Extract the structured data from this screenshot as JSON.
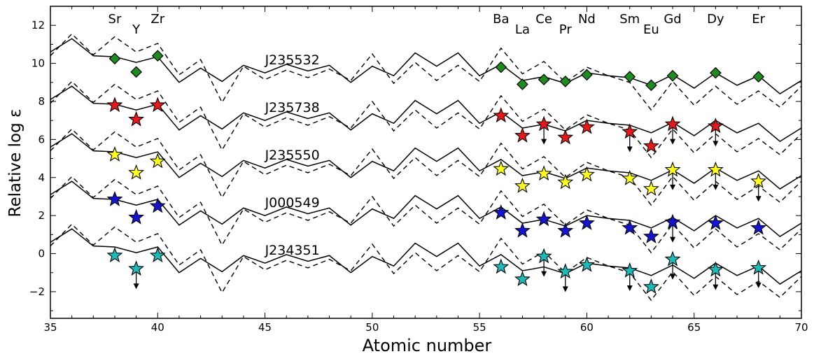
{
  "chart_data": {
    "type": "line",
    "xlabel": "Atomic number",
    "ylabel": "Relative log ε",
    "xlim": [
      35,
      70
    ],
    "ylim": [
      -3.4,
      13.0
    ],
    "xticks": [
      35,
      40,
      45,
      50,
      55,
      60,
      65,
      70
    ],
    "yticks": [
      -2,
      0,
      2,
      4,
      6,
      8,
      10,
      12
    ],
    "grid": false,
    "element_labels": [
      {
        "z": 38,
        "label": "Sr",
        "row": "upper"
      },
      {
        "z": 39,
        "label": "Y",
        "row": "lower"
      },
      {
        "z": 40,
        "label": "Zr",
        "row": "upper"
      },
      {
        "z": 56,
        "label": "Ba",
        "row": "upper"
      },
      {
        "z": 57,
        "label": "La",
        "row": "lower"
      },
      {
        "z": 58,
        "label": "Ce",
        "row": "upper"
      },
      {
        "z": 59,
        "label": "Pr",
        "row": "lower"
      },
      {
        "z": 60,
        "label": "Nd",
        "row": "upper"
      },
      {
        "z": 62,
        "label": "Sm",
        "row": "upper"
      },
      {
        "z": 63,
        "label": "Eu",
        "row": "lower"
      },
      {
        "z": 64,
        "label": "Gd",
        "row": "upper"
      },
      {
        "z": 66,
        "label": "Dy",
        "row": "upper"
      },
      {
        "z": 68,
        "label": "Er",
        "row": "upper"
      }
    ],
    "pattern_x": [
      35,
      36,
      37,
      38,
      39,
      40,
      41,
      42,
      43,
      44,
      45,
      46,
      47,
      48,
      49,
      50,
      51,
      52,
      53,
      54,
      55,
      56,
      57,
      58,
      59,
      60,
      61,
      62,
      63,
      64,
      65,
      66,
      67,
      68,
      69,
      70
    ],
    "solid_pattern": [
      10.6,
      11.3,
      10.4,
      10.35,
      10.05,
      10.35,
      9.0,
      9.75,
      9.05,
      9.9,
      9.5,
      9.95,
      9.6,
      9.9,
      9.0,
      9.85,
      9.35,
      10.55,
      9.85,
      10.55,
      9.35,
      9.95,
      9.1,
      9.3,
      8.95,
      9.5,
      9.35,
      9.25,
      8.85,
      9.4,
      8.7,
      9.5,
      8.85,
      9.35,
      8.4,
      9.1
    ],
    "dashed_pattern": [
      10.4,
      11.55,
      10.45,
      11.4,
      10.6,
      11.05,
      9.4,
      10.2,
      7.95,
      9.85,
      9.15,
      9.65,
      9.25,
      9.7,
      9.1,
      10.5,
      8.95,
      10.05,
      9.1,
      9.9,
      9.05,
      10.8,
      9.45,
      10.1,
      9.0,
      9.8,
      9.35,
      9.0,
      7.55,
      9.05,
      7.8,
      8.8,
      7.85,
      8.55,
      7.7,
      8.8
    ],
    "star_series": [
      {
        "name": "J235532",
        "offset": 0.0,
        "marker": "diamond",
        "color": "#1f8a1f",
        "points": [
          {
            "z": 38,
            "y": 10.25
          },
          {
            "z": 39,
            "y": 9.55
          },
          {
            "z": 40,
            "y": 10.4
          },
          {
            "z": 56,
            "y": 9.8
          },
          {
            "z": 57,
            "y": 8.9
          },
          {
            "z": 58,
            "y": 9.15
          },
          {
            "z": 59,
            "y": 9.05
          },
          {
            "z": 60,
            "y": 9.4
          },
          {
            "z": 62,
            "y": 9.3
          },
          {
            "z": 63,
            "y": 8.85
          },
          {
            "z": 64,
            "y": 9.35
          },
          {
            "z": 66,
            "y": 9.5
          },
          {
            "z": 68,
            "y": 9.3
          }
        ]
      },
      {
        "name": "J235738",
        "offset": -2.5,
        "marker": "star",
        "color": "#e31a1c",
        "points": [
          {
            "z": 38,
            "y": 7.8
          },
          {
            "z": 39,
            "y": 7.05
          },
          {
            "z": 40,
            "y": 7.8
          },
          {
            "z": 56,
            "y": 7.25
          },
          {
            "z": 57,
            "y": 6.2
          },
          {
            "z": 58,
            "y": 6.8,
            "upper_limit": true
          },
          {
            "z": 59,
            "y": 6.1
          },
          {
            "z": 60,
            "y": 6.65
          },
          {
            "z": 62,
            "y": 6.4,
            "upper_limit": true
          },
          {
            "z": 63,
            "y": 5.65
          },
          {
            "z": 64,
            "y": 6.8,
            "upper_limit": true
          },
          {
            "z": 66,
            "y": 6.7,
            "upper_limit": true
          },
          {
            "z": 68,
            "y": null
          }
        ]
      },
      {
        "name": "J235550",
        "offset": -5.0,
        "marker": "star",
        "color": "#ffff22",
        "points": [
          {
            "z": 38,
            "y": 5.2
          },
          {
            "z": 39,
            "y": 4.25
          },
          {
            "z": 40,
            "y": 4.85
          },
          {
            "z": 56,
            "y": 4.45
          },
          {
            "z": 57,
            "y": 3.55
          },
          {
            "z": 58,
            "y": 4.2
          },
          {
            "z": 59,
            "y": 3.75
          },
          {
            "z": 60,
            "y": 4.15
          },
          {
            "z": 62,
            "y": 3.95
          },
          {
            "z": 63,
            "y": 3.4
          },
          {
            "z": 64,
            "y": 4.4,
            "upper_limit": true
          },
          {
            "z": 66,
            "y": 4.4,
            "upper_limit": true
          },
          {
            "z": 68,
            "y": 3.8,
            "upper_limit": true
          }
        ]
      },
      {
        "name": "J000549",
        "offset": -7.5,
        "marker": "star",
        "color": "#1515d0",
        "points": [
          {
            "z": 38,
            "y": 2.85
          },
          {
            "z": 39,
            "y": 1.9
          },
          {
            "z": 40,
            "y": 2.5
          },
          {
            "z": 56,
            "y": 2.15
          },
          {
            "z": 57,
            "y": 1.2
          },
          {
            "z": 58,
            "y": 1.8
          },
          {
            "z": 59,
            "y": 1.2
          },
          {
            "z": 60,
            "y": 1.6
          },
          {
            "z": 62,
            "y": 1.35
          },
          {
            "z": 63,
            "y": 0.9
          },
          {
            "z": 64,
            "y": 1.65,
            "upper_limit": true
          },
          {
            "z": 66,
            "y": 1.6
          },
          {
            "z": 68,
            "y": 1.35
          }
        ]
      },
      {
        "name": "J234351",
        "offset": -10.0,
        "marker": "star",
        "color": "#20b8b8",
        "points": [
          {
            "z": 38,
            "y": -0.1
          },
          {
            "z": 39,
            "y": -0.8,
            "upper_limit": true
          },
          {
            "z": 40,
            "y": -0.1
          },
          {
            "z": 56,
            "y": -0.7
          },
          {
            "z": 57,
            "y": -1.35
          },
          {
            "z": 58,
            "y": -0.15,
            "upper_limit": true
          },
          {
            "z": 59,
            "y": -0.95,
            "upper_limit": true
          },
          {
            "z": 60,
            "y": -0.6
          },
          {
            "z": 62,
            "y": -0.9,
            "upper_limit": true
          },
          {
            "z": 63,
            "y": -1.75
          },
          {
            "z": 64,
            "y": -0.3,
            "upper_limit": true
          },
          {
            "z": 66,
            "y": -0.85,
            "upper_limit": true
          },
          {
            "z": 68,
            "y": -0.75,
            "upper_limit": true
          }
        ]
      }
    ],
    "series_label_z": 45.0,
    "series_label_dy": -0.05
  }
}
